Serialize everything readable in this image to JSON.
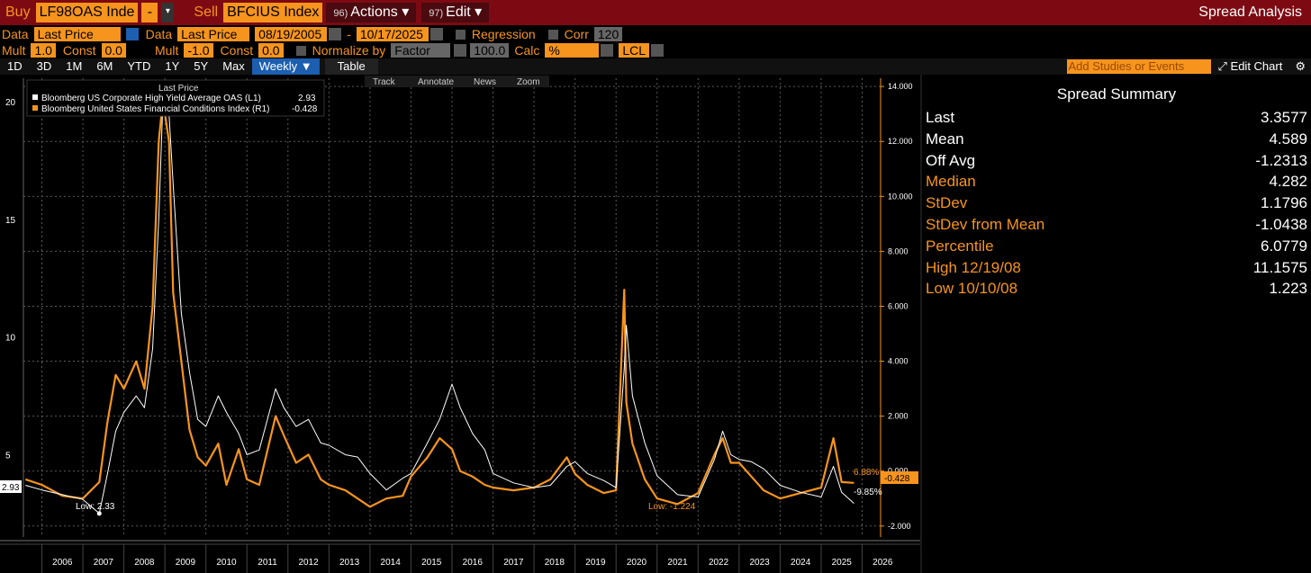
{
  "topbar": {
    "buy_label": "Buy",
    "buy_ticker": "LF98OAS Inde",
    "buy_op": "-",
    "sell_label": "Sell",
    "sell_ticker": "BFCIUS Index",
    "actions_num": "96)",
    "actions_label": "Actions",
    "edit_num": "97)",
    "edit_label": "Edit",
    "title": "Spread Analysis"
  },
  "row1": {
    "data_label": "Data",
    "data_value": "Last Price",
    "data2_label": "Data",
    "data2_value": "Last Price",
    "start_date": "08/19/2005",
    "dash": "-",
    "end_date": "10/17/2025",
    "regression_label": "Regression",
    "corr_label": "Corr",
    "corr_value": "120"
  },
  "row2": {
    "mult_label": "Mult",
    "mult_value": "1.0",
    "const_label": "Const",
    "const_value": "0.0",
    "mult2_label": "Mult",
    "mult2_value": "-1.0",
    "const2_label": "Const",
    "const2_value": "0.0",
    "normalize_label": "Normalize by",
    "normalize_value": "Factor",
    "factor_value": "100.0",
    "calc_label": "Calc",
    "calc_value": "%",
    "lcl_value": "LCL"
  },
  "tabs": {
    "items": [
      "1D",
      "3D",
      "1M",
      "6M",
      "YTD",
      "1Y",
      "5Y",
      "Max"
    ],
    "active": "Weekly ▼",
    "table": "Table",
    "studies_placeholder": "Add Studies or Events",
    "edit_chart": "Edit Chart"
  },
  "chart": {
    "legend_header": "Last Price",
    "series1_name": "Bloomberg US Corporate High Yield Average OAS  (L1)",
    "series1_value": "2.93",
    "series2_name": "Bloomberg United States Financial Conditions Index  (R1)",
    "series2_value": "-0.428",
    "toolbar": [
      "Track",
      "Annotate",
      "News",
      "Zoom"
    ],
    "low_label_1": "Low: 2.33",
    "low_label_2": "Low: -1.224",
    "left_value_box": "2.93",
    "right_value_box": "-0.428",
    "pct_top": "6.88%",
    "pct_bottom": "-9.85%",
    "colors": {
      "white": "#ffffff",
      "orange": "#f7941d",
      "grid": "#555555"
    }
  },
  "chart_data": {
    "type": "line",
    "x_labels": [
      "2006",
      "2007",
      "2008",
      "2009",
      "2010",
      "2011",
      "2012",
      "2013",
      "2014",
      "2015",
      "2016",
      "2017",
      "2018",
      "2019",
      "2020",
      "2021",
      "2022",
      "2023",
      "2024",
      "2025",
      "2026"
    ],
    "y_left_ticks": [
      "20",
      "15",
      "10",
      "5"
    ],
    "y_right_ticks": [
      "14.000",
      "12.000",
      "10.000",
      "8.000",
      "6.000",
      "4.000",
      "2.000",
      "0.000",
      "-2.000"
    ],
    "ylim_left": [
      1.5,
      21
    ],
    "ylim_right": [
      -2.4,
      14.3
    ],
    "series": [
      {
        "name": "Bloomberg US Corporate High Yield Average OAS",
        "axis": "left",
        "x": [
          2005.6,
          2006.0,
          2006.5,
          2007.0,
          2007.4,
          2007.6,
          2007.8,
          2008.0,
          2008.3,
          2008.5,
          2008.7,
          2008.85,
          2008.95,
          2009.1,
          2009.2,
          2009.4,
          2009.6,
          2009.8,
          2010.0,
          2010.3,
          2010.5,
          2010.8,
          2011.0,
          2011.3,
          2011.7,
          2011.9,
          2012.2,
          2012.5,
          2012.8,
          2013.0,
          2013.4,
          2013.7,
          2014.0,
          2014.4,
          2014.8,
          2015.0,
          2015.4,
          2015.7,
          2016.0,
          2016.2,
          2016.5,
          2016.8,
          2017.0,
          2017.5,
          2018.0,
          2018.4,
          2018.8,
          2019.0,
          2019.3,
          2019.7,
          2020.0,
          2020.2,
          2020.25,
          2020.4,
          2020.7,
          2021.0,
          2021.5,
          2022.0,
          2022.4,
          2022.6,
          2022.8,
          2023.0,
          2023.3,
          2023.6,
          2024.0,
          2024.5,
          2025.0,
          2025.3,
          2025.5,
          2025.8
        ],
        "y": [
          3.7,
          3.5,
          3.3,
          3.1,
          2.5,
          4.2,
          6.0,
          6.8,
          7.5,
          7.0,
          9.5,
          15.0,
          20.0,
          19.5,
          16.5,
          11.0,
          8.5,
          6.5,
          6.2,
          7.5,
          6.8,
          5.9,
          5.0,
          5.2,
          7.8,
          7.0,
          6.2,
          6.5,
          5.5,
          5.4,
          5.0,
          4.9,
          4.2,
          3.5,
          4.0,
          4.2,
          5.5,
          6.5,
          8.0,
          7.0,
          5.9,
          5.2,
          4.2,
          3.8,
          3.6,
          3.7,
          4.5,
          4.7,
          4.2,
          3.9,
          3.6,
          8.7,
          10.5,
          7.5,
          5.5,
          4.1,
          3.3,
          3.2,
          4.8,
          6.0,
          5.0,
          4.8,
          4.7,
          4.4,
          3.7,
          3.4,
          3.2,
          4.5,
          3.4,
          2.93
        ]
      },
      {
        "name": "Bloomberg United States Financial Conditions Index",
        "axis": "right",
        "x": [
          2005.6,
          2006.0,
          2006.5,
          2007.0,
          2007.4,
          2007.6,
          2007.8,
          2008.0,
          2008.3,
          2008.5,
          2008.7,
          2008.85,
          2008.95,
          2009.1,
          2009.2,
          2009.4,
          2009.6,
          2009.8,
          2010.0,
          2010.3,
          2010.5,
          2010.8,
          2011.0,
          2011.3,
          2011.7,
          2011.9,
          2012.2,
          2012.5,
          2012.8,
          2013.0,
          2013.4,
          2013.7,
          2014.0,
          2014.4,
          2014.8,
          2015.0,
          2015.4,
          2015.7,
          2016.0,
          2016.2,
          2016.5,
          2016.8,
          2017.0,
          2017.5,
          2018.0,
          2018.4,
          2018.8,
          2019.0,
          2019.3,
          2019.7,
          2020.0,
          2020.2,
          2020.25,
          2020.4,
          2020.7,
          2021.0,
          2021.5,
          2022.0,
          2022.4,
          2022.6,
          2022.8,
          2023.0,
          2023.3,
          2023.6,
          2024.0,
          2024.5,
          2025.0,
          2025.3,
          2025.5,
          2025.8
        ],
        "y": [
          -0.3,
          -0.5,
          -0.9,
          -1.0,
          -0.4,
          1.8,
          3.5,
          3.0,
          4.0,
          3.0,
          6.0,
          12.0,
          13.5,
          12.0,
          6.5,
          4.0,
          1.5,
          0.5,
          0.2,
          1.0,
          -0.5,
          0.8,
          -0.3,
          -0.5,
          2.0,
          1.3,
          0.3,
          0.6,
          -0.3,
          -0.5,
          -0.7,
          -1.0,
          -1.3,
          -1.0,
          -0.9,
          -0.2,
          0.5,
          1.2,
          0.8,
          0.0,
          -0.2,
          -0.5,
          -0.6,
          -0.7,
          -0.6,
          -0.3,
          0.5,
          -0.1,
          -0.5,
          -0.8,
          -0.7,
          6.6,
          2.5,
          1.0,
          -0.3,
          -1.0,
          -1.2,
          -0.8,
          0.6,
          1.2,
          0.3,
          0.3,
          -0.2,
          -0.7,
          -1.0,
          -0.8,
          -0.6,
          1.2,
          -0.4,
          -0.428
        ]
      }
    ],
    "summary": {
      "title": "Spread Summary",
      "rows": [
        {
          "key": "Last",
          "value": "3.3577",
          "color": "white"
        },
        {
          "key": "Mean",
          "value": "4.589",
          "color": "white"
        },
        {
          "key": "Off Avg",
          "value": "-1.2313",
          "color": "white"
        },
        {
          "key": "Median",
          "value": "4.282",
          "color": "orange"
        },
        {
          "key": "StDev",
          "value": "1.1796",
          "color": "orange"
        },
        {
          "key": "StDev from Mean",
          "value": "-1.0438",
          "color": "orange"
        },
        {
          "key": "Percentile",
          "value": "6.0779",
          "color": "orange"
        },
        {
          "key": "High 12/19/08",
          "value": "11.1575",
          "color": "orange"
        },
        {
          "key": "Low 10/10/08",
          "value": "1.223",
          "color": "orange"
        }
      ]
    }
  }
}
